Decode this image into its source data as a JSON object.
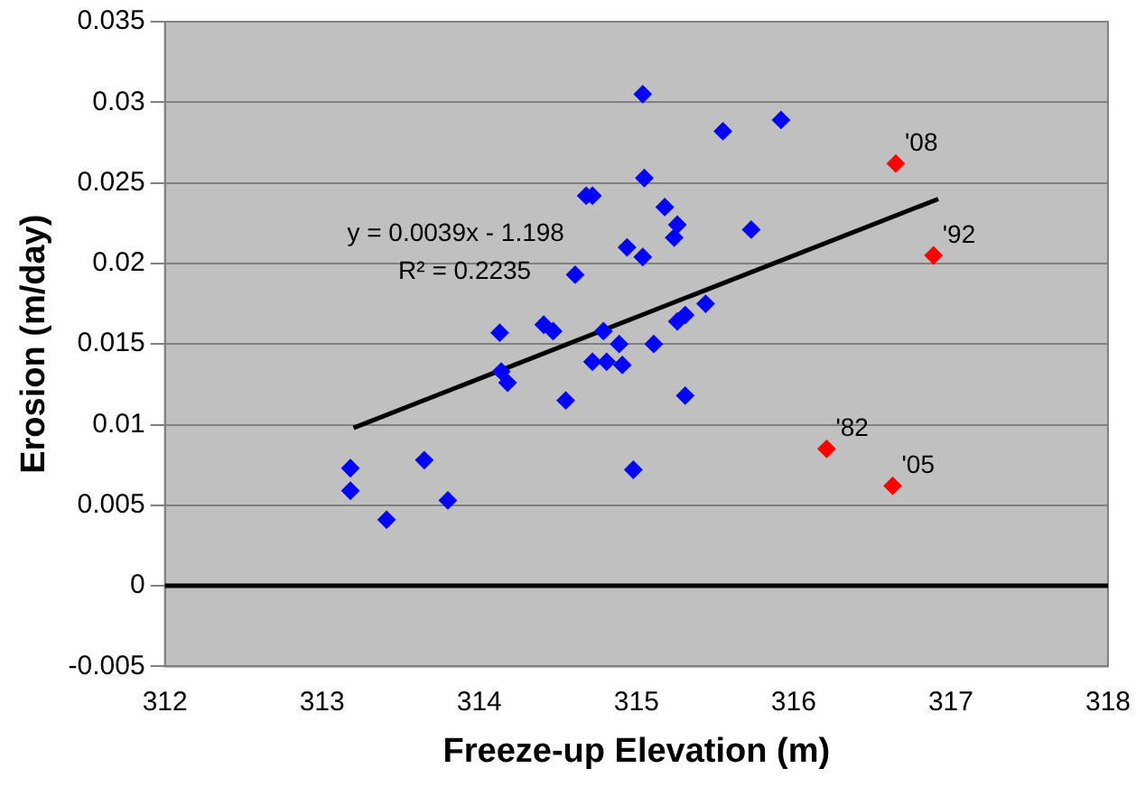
{
  "chart_data": {
    "type": "scatter",
    "xlabel": "Freeze-up Elevation (m)",
    "ylabel": "Erosion (m/day)",
    "xlim": [
      312,
      318
    ],
    "xticks": [
      312,
      313,
      314,
      315,
      316,
      317,
      318
    ],
    "ylim": [
      -0.005,
      0.035
    ],
    "yticks": [
      -0.005,
      0,
      0.005,
      0.01,
      0.015,
      0.02,
      0.025,
      0.03,
      0.035
    ],
    "grid": "y",
    "legend": false,
    "marker": "diamond",
    "series": [
      {
        "color": "#0000ff",
        "x": [
          313.18,
          313.18,
          313.41,
          313.65,
          313.8,
          314.13,
          314.14,
          314.18,
          314.41,
          314.47,
          314.55,
          314.61,
          314.68,
          314.72,
          314.72,
          314.79,
          314.81,
          314.89,
          314.91,
          314.94,
          314.98,
          315.04,
          315.04,
          315.05,
          315.11,
          315.18,
          315.26,
          315.24,
          315.26,
          315.31,
          315.31,
          315.44,
          315.55,
          315.73,
          315.92
        ],
        "values": [
          0.0073,
          0.0059,
          0.0041,
          0.0078,
          0.0053,
          0.0157,
          0.0133,
          0.0126,
          0.0162,
          0.0158,
          0.0115,
          0.0193,
          0.0242,
          0.0242,
          0.0139,
          0.0158,
          0.0139,
          0.015,
          0.0137,
          0.021,
          0.0072,
          0.0305,
          0.0204,
          0.0253,
          0.015,
          0.0235,
          0.0224,
          0.0216,
          0.0164,
          0.0168,
          0.0118,
          0.0175,
          0.0282,
          0.0221,
          0.0289
        ]
      },
      {
        "color": "#ff0000",
        "x": [
          316.65,
          316.89,
          316.21,
          316.63
        ],
        "values": [
          0.0262,
          0.0205,
          0.0085,
          0.0062
        ]
      },
      {
        "type": "line",
        "marker": "none",
        "color": "#000000",
        "x": [
          313.2,
          316.92
        ],
        "values": [
          0.0098,
          0.024
        ]
      }
    ],
    "ref_lines": [
      {
        "axis": "y",
        "value": 0,
        "color": "#000000"
      }
    ],
    "annotations": [
      {
        "text": "'08",
        "x": 316.65,
        "y": 0.0262
      },
      {
        "text": "'92",
        "x": 316.89,
        "y": 0.0205
      },
      {
        "text": "'82",
        "x": 316.21,
        "y": 0.0085
      },
      {
        "text": "'05",
        "x": 316.63,
        "y": 0.0062
      },
      "y = 0.0039x - 1.198\nR² = 0.2235"
    ]
  }
}
